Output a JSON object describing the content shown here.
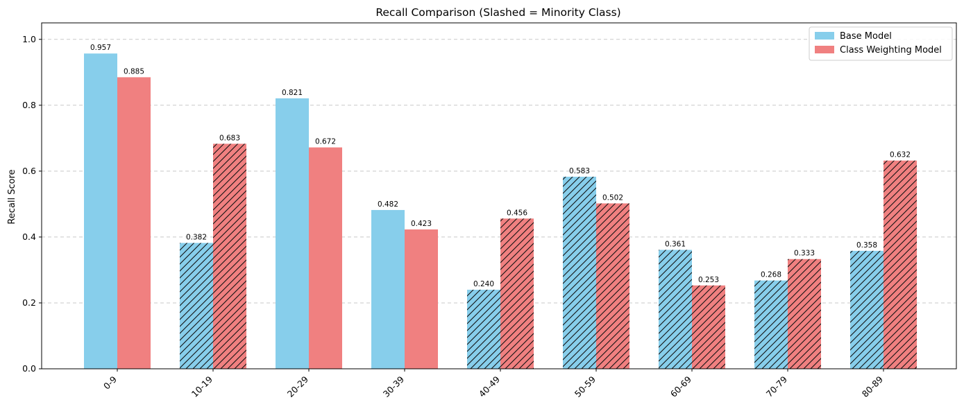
{
  "chart_data": {
    "type": "bar",
    "title": "Recall Comparison (Slashed = Minority Class)",
    "xlabel": "",
    "ylabel": "Recall Score",
    "ylim": [
      0,
      1.05
    ],
    "yticks": [
      "0.0",
      "0.2",
      "0.4",
      "0.6",
      "0.8",
      "1.0"
    ],
    "grid": "y-dashed",
    "legend_position": "top-right",
    "categories": [
      "0-9",
      "10-19",
      "20-29",
      "30-39",
      "40-49",
      "50-59",
      "60-69",
      "70-79",
      "80-89"
    ],
    "minority_class": [
      false,
      true,
      false,
      false,
      true,
      true,
      true,
      true,
      true
    ],
    "series": [
      {
        "name": "Base Model",
        "color": "#87ceeb",
        "values": [
          0.957,
          0.382,
          0.821,
          0.482,
          0.24,
          0.583,
          0.361,
          0.268,
          0.358
        ],
        "labels": [
          "0.957",
          "0.382",
          "0.821",
          "0.482",
          "0.240",
          "0.583",
          "0.361",
          "0.268",
          "0.358"
        ]
      },
      {
        "name": "Class Weighting Model",
        "color": "#f08080",
        "values": [
          0.885,
          0.683,
          0.672,
          0.423,
          0.456,
          0.502,
          0.253,
          0.333,
          0.632
        ],
        "labels": [
          "0.885",
          "0.683",
          "0.672",
          "0.423",
          "0.456",
          "0.502",
          "0.253",
          "0.333",
          "0.632"
        ]
      }
    ]
  }
}
